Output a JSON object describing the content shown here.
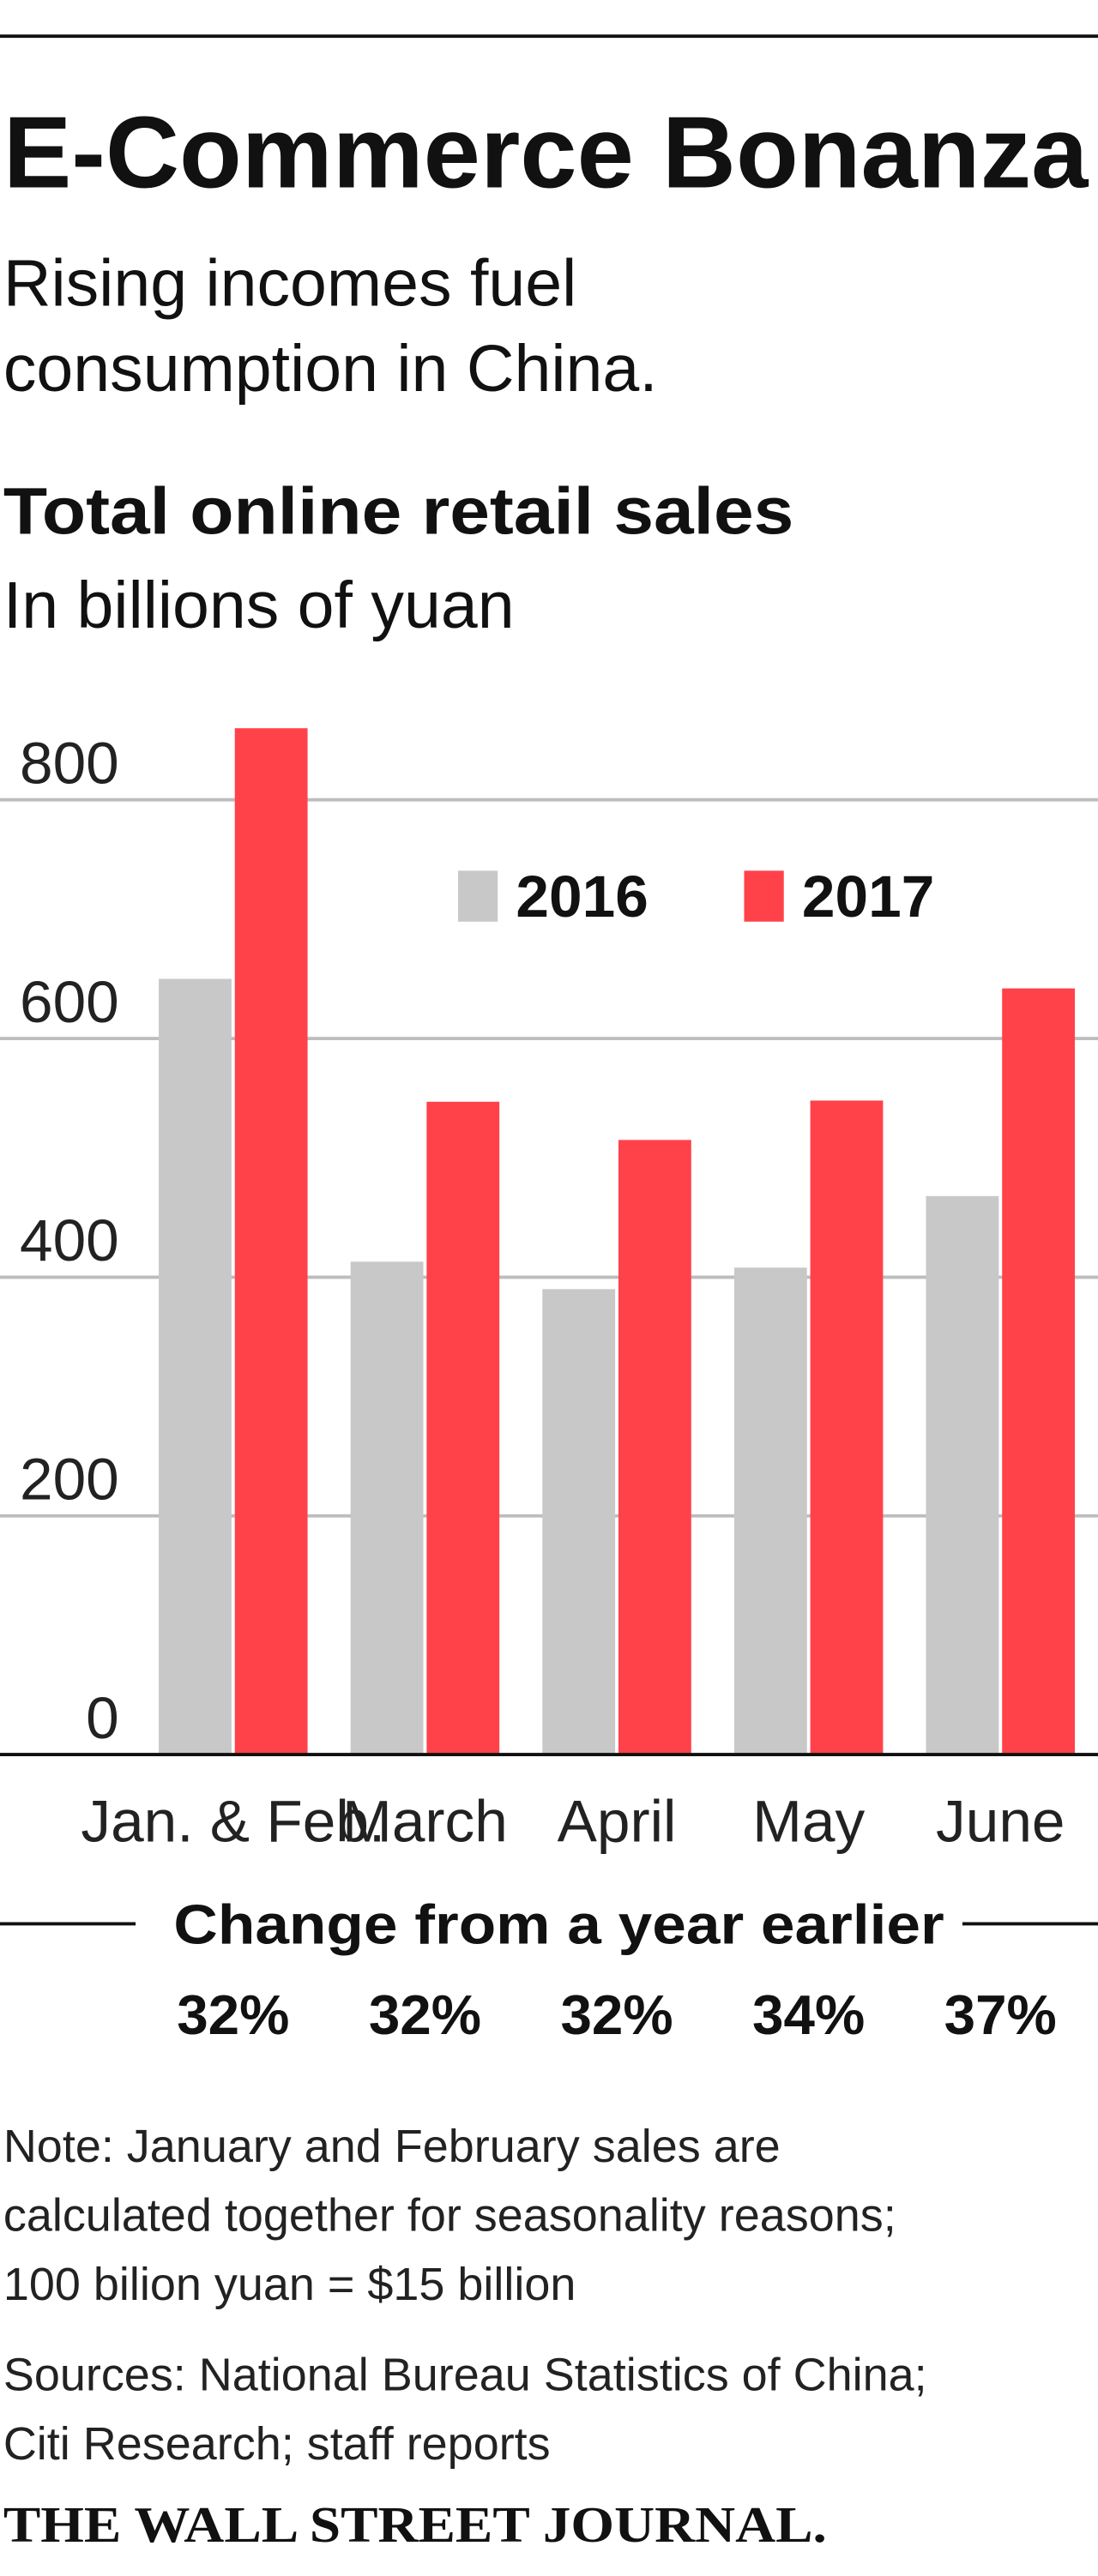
{
  "chart_data": {
    "type": "bar",
    "title": "E-Commerce Bonanza",
    "subtitle": [
      "Rising incomes fuel",
      "consumption in China."
    ],
    "chart_title": "Total online retail sales",
    "unit_label": "In billions of yuan",
    "categories": [
      "Jan. & Feb.",
      "March",
      "April",
      "May",
      "June"
    ],
    "series": [
      {
        "name": "2016",
        "color": "#c8c8c8",
        "values": [
          650,
          413,
          390,
          408,
          468
        ]
      },
      {
        "name": "2017",
        "color": "#ff424a",
        "values": [
          860,
          547,
          515,
          548,
          642
        ]
      }
    ],
    "ylim": [
      0,
      870
    ],
    "yticks": [
      0,
      200,
      400,
      600,
      800
    ],
    "grid": true,
    "legend": "top-right",
    "change_title": "Change from a year earlier",
    "change_labels": [
      "32%",
      "32%",
      "32%",
      "34%",
      "37%"
    ],
    "note": [
      "Note: January and February sales are",
      "calculated together for seasonality reasons;",
      "100 bilion yuan = $15 billion"
    ],
    "source": [
      "Sources: National Bureau Statistics of China;",
      "Citi Research; staff reports"
    ],
    "credit": "THE WALL STREET JOURNAL."
  }
}
